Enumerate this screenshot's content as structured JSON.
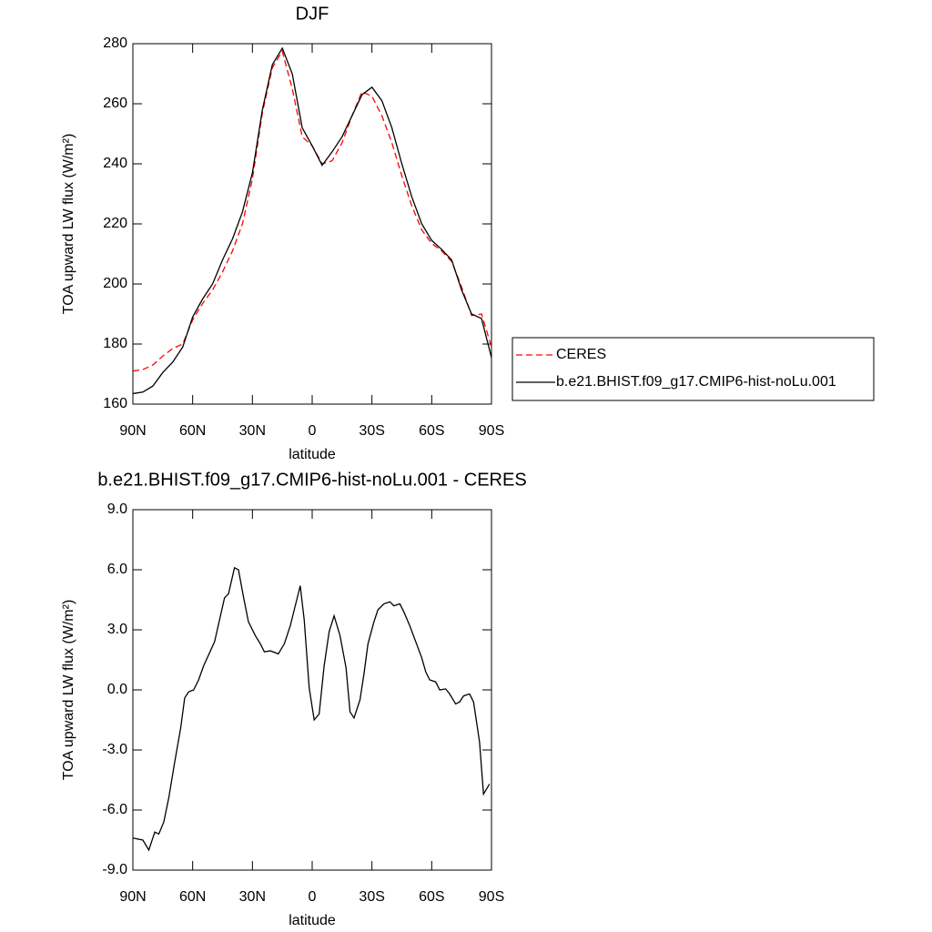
{
  "chart_data": [
    {
      "type": "line",
      "title": "DJF",
      "xlabel": "latitude",
      "ylabel": "TOA upward LW flux (W/m²)",
      "xlim": [
        90,
        -90
      ],
      "xticks": [
        {
          "value": 90,
          "label": "90N"
        },
        {
          "value": 60,
          "label": "60N"
        },
        {
          "value": 30,
          "label": "30N"
        },
        0,
        {
          "value": -30,
          "label": "30S"
        },
        {
          "value": -60,
          "label": "60S"
        },
        {
          "value": -90,
          "label": "90S"
        }
      ],
      "ylim": [
        160,
        280
      ],
      "yticks": [
        160,
        180,
        200,
        220,
        240,
        260,
        280
      ],
      "legend": "right",
      "x": [
        90,
        85,
        80,
        75,
        70,
        65,
        60,
        55,
        50,
        45,
        40,
        35,
        30,
        25,
        20,
        15,
        10,
        5,
        0,
        -5,
        -10,
        -15,
        -20,
        -25,
        -30,
        -35,
        -40,
        -45,
        -50,
        -55,
        -60,
        -65,
        -70,
        -75,
        -80,
        -85,
        -90
      ],
      "series": [
        {
          "name": "CERES",
          "color": "#ff0000",
          "dash": true,
          "values": [
            171,
            171.5,
            173,
            176,
            178.5,
            180,
            188,
            193.5,
            198,
            204,
            211,
            220,
            235,
            257,
            272,
            277.5,
            265,
            249,
            246,
            240,
            241,
            247,
            256,
            264,
            262.5,
            256,
            247,
            236,
            226,
            218,
            213.5,
            211,
            207.5,
            199,
            189.5,
            190,
            179
          ]
        },
        {
          "name": "b.e21.BHIST.f09_g17.CMIP6-hist-noLu.001",
          "color": "#000000",
          "dash": false,
          "values": [
            163.5,
            164,
            166,
            170.5,
            174,
            179,
            189,
            195,
            200,
            208,
            215,
            224,
            237,
            258,
            273,
            278.5,
            270,
            252,
            246,
            239.5,
            244,
            249,
            256,
            263,
            265.5,
            261,
            252,
            240,
            229,
            220,
            214.5,
            211.5,
            208,
            198,
            190,
            188.5,
            175.5
          ]
        }
      ]
    },
    {
      "type": "line",
      "title": "b.e21.BHIST.f09_g17.CMIP6-hist-noLu.001 - CERES",
      "xlabel": "latitude",
      "ylabel": "TOA upward LW flux (W/m²)",
      "xlim": [
        90,
        -90
      ],
      "xticks": [
        {
          "value": 90,
          "label": "90N"
        },
        {
          "value": 60,
          "label": "60N"
        },
        {
          "value": 30,
          "label": "30N"
        },
        0,
        {
          "value": -30,
          "label": "30S"
        },
        {
          "value": -60,
          "label": "60S"
        },
        {
          "value": -90,
          "label": "90S"
        }
      ],
      "ylim": [
        -9,
        9
      ],
      "yticks": [
        {
          "value": -9,
          "label": "-9.0"
        },
        {
          "value": -6,
          "label": "-6.0"
        },
        {
          "value": -3,
          "label": "-3.0"
        },
        {
          "value": 0,
          "label": "0.0"
        },
        {
          "value": 3,
          "label": "3.0"
        },
        {
          "value": 6,
          "label": "6.0"
        },
        {
          "value": 9,
          "label": "9.0"
        }
      ],
      "x": [
        90,
        85,
        82,
        79,
        77,
        74.5,
        72,
        69,
        66,
        64,
        62,
        59.5,
        57,
        54.5,
        49,
        44,
        42,
        39,
        37,
        34.4,
        32,
        28.5,
        26,
        24,
        21,
        17,
        14,
        11,
        6,
        4,
        1.5,
        -1,
        -3.5,
        -6,
        -8.5,
        -11,
        -14,
        -17,
        -19,
        -21,
        -24,
        -26,
        -28,
        -31,
        -33,
        -36,
        -39,
        -41,
        -44,
        -46,
        -49,
        -52,
        -55,
        -57,
        -59,
        -62,
        -64,
        -67,
        -69,
        -72,
        -74,
        -76,
        -79,
        -81,
        -84,
        -86,
        -89
      ],
      "series": [
        {
          "name": null,
          "color": "#000000",
          "dash": false,
          "values": [
            -7.4,
            -7.5,
            -8,
            -7.1,
            -7.2,
            -6.6,
            -5.4,
            -3.6,
            -1.9,
            -0.4,
            -0.1,
            0,
            0.5,
            1.2,
            2.4,
            4.6,
            4.8,
            6.1,
            6,
            4.6,
            3.4,
            2.7,
            2.3,
            1.9,
            1.95,
            1.8,
            2.3,
            3.2,
            5.2,
            3.5,
            0.1,
            -1.5,
            -1.2,
            1.2,
            2.9,
            3.7,
            2.7,
            1.1,
            -1.1,
            -1.4,
            -0.5,
            0.8,
            2.3,
            3.4,
            4,
            4.3,
            4.4,
            4.2,
            4.3,
            3.9,
            3.2,
            2.4,
            1.6,
            0.9,
            0.5,
            0.4,
            0,
            0.05,
            -0.2,
            -0.7,
            -0.6,
            -0.3,
            -0.2,
            -0.6,
            -2.6,
            -5.2,
            -4.7
          ]
        }
      ]
    }
  ]
}
